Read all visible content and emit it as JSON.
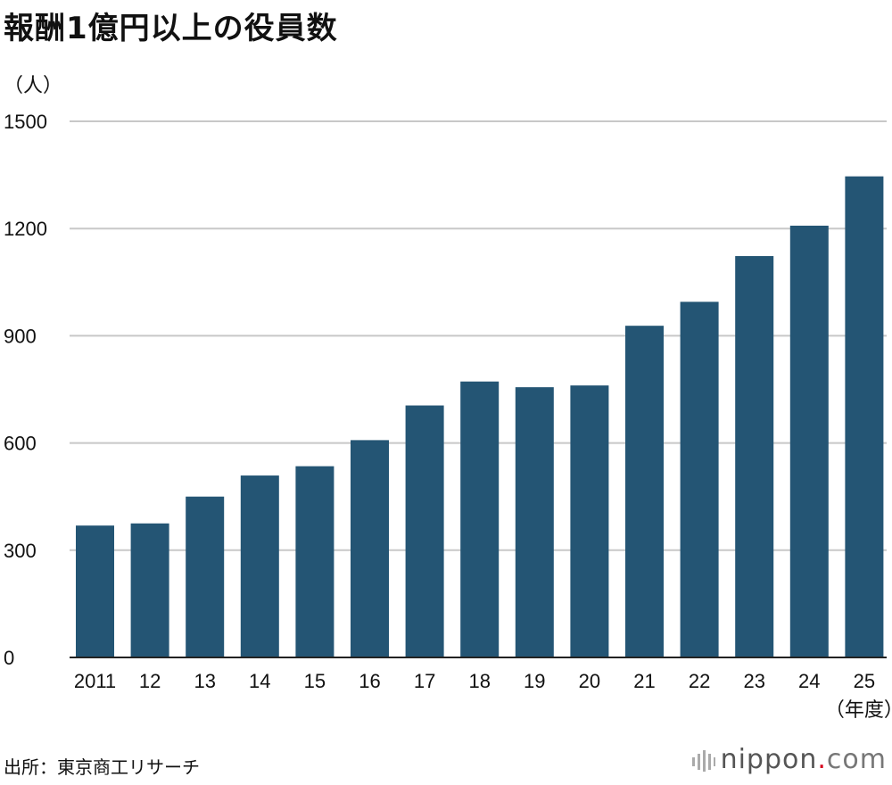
{
  "header": {
    "title": "報酬1億円以上の役員数",
    "unit": "（人）"
  },
  "footer": {
    "source": "出所：東京商工リサーチ"
  },
  "logo": {
    "text_main": "nippon",
    "text_dot": ".",
    "text_com": "com"
  },
  "chart_data": {
    "type": "bar",
    "title": "報酬1億円以上の役員数",
    "ylabel": "（人）",
    "xlabel": "（年度）",
    "categories": [
      "2011",
      "12",
      "13",
      "14",
      "15",
      "16",
      "17",
      "18",
      "19",
      "20",
      "21",
      "22",
      "23",
      "24",
      "25"
    ],
    "values": [
      369,
      375,
      450,
      509,
      535,
      608,
      705,
      772,
      756,
      761,
      928,
      995,
      1123,
      1208,
      1346
    ],
    "ylim": [
      0,
      1500
    ],
    "yticks": [
      0,
      300,
      600,
      900,
      1200,
      1500
    ],
    "grid": true,
    "bar_color": "#245574",
    "grid_color": "#c8c8c8"
  }
}
